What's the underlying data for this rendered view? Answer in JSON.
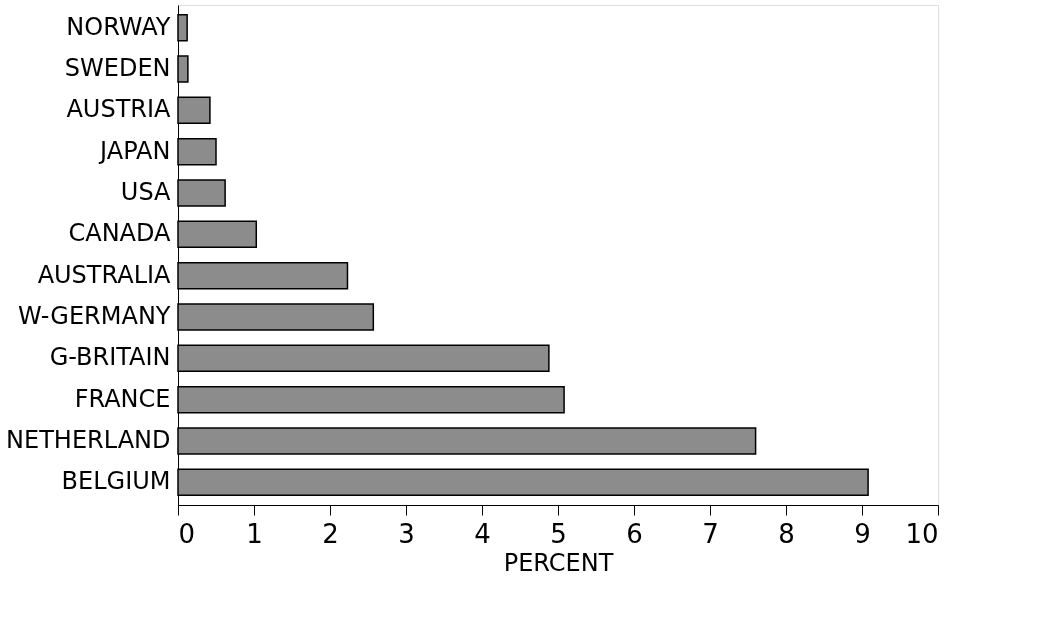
{
  "chart_data": {
    "type": "bar",
    "orientation": "horizontal",
    "xlabel": "PERCENT",
    "categories": [
      "NORWAY",
      "SWEDEN",
      "AUSTRIA",
      "JAPAN",
      "USA",
      "CANADA",
      "AUSTRALIA",
      "W-GERMANY",
      "G-BRITAIN",
      "FRANCE",
      "NETHERLAND",
      "BELGIUM"
    ],
    "values": [
      0.12,
      0.13,
      0.42,
      0.5,
      0.62,
      1.03,
      2.23,
      2.57,
      4.88,
      5.08,
      7.6,
      9.08
    ],
    "color": "#8c8c8c",
    "xlim": [
      0,
      10
    ],
    "xticks": [
      0,
      1,
      2,
      3,
      4,
      5,
      6,
      7,
      8,
      9,
      10
    ],
    "grid": false
  }
}
